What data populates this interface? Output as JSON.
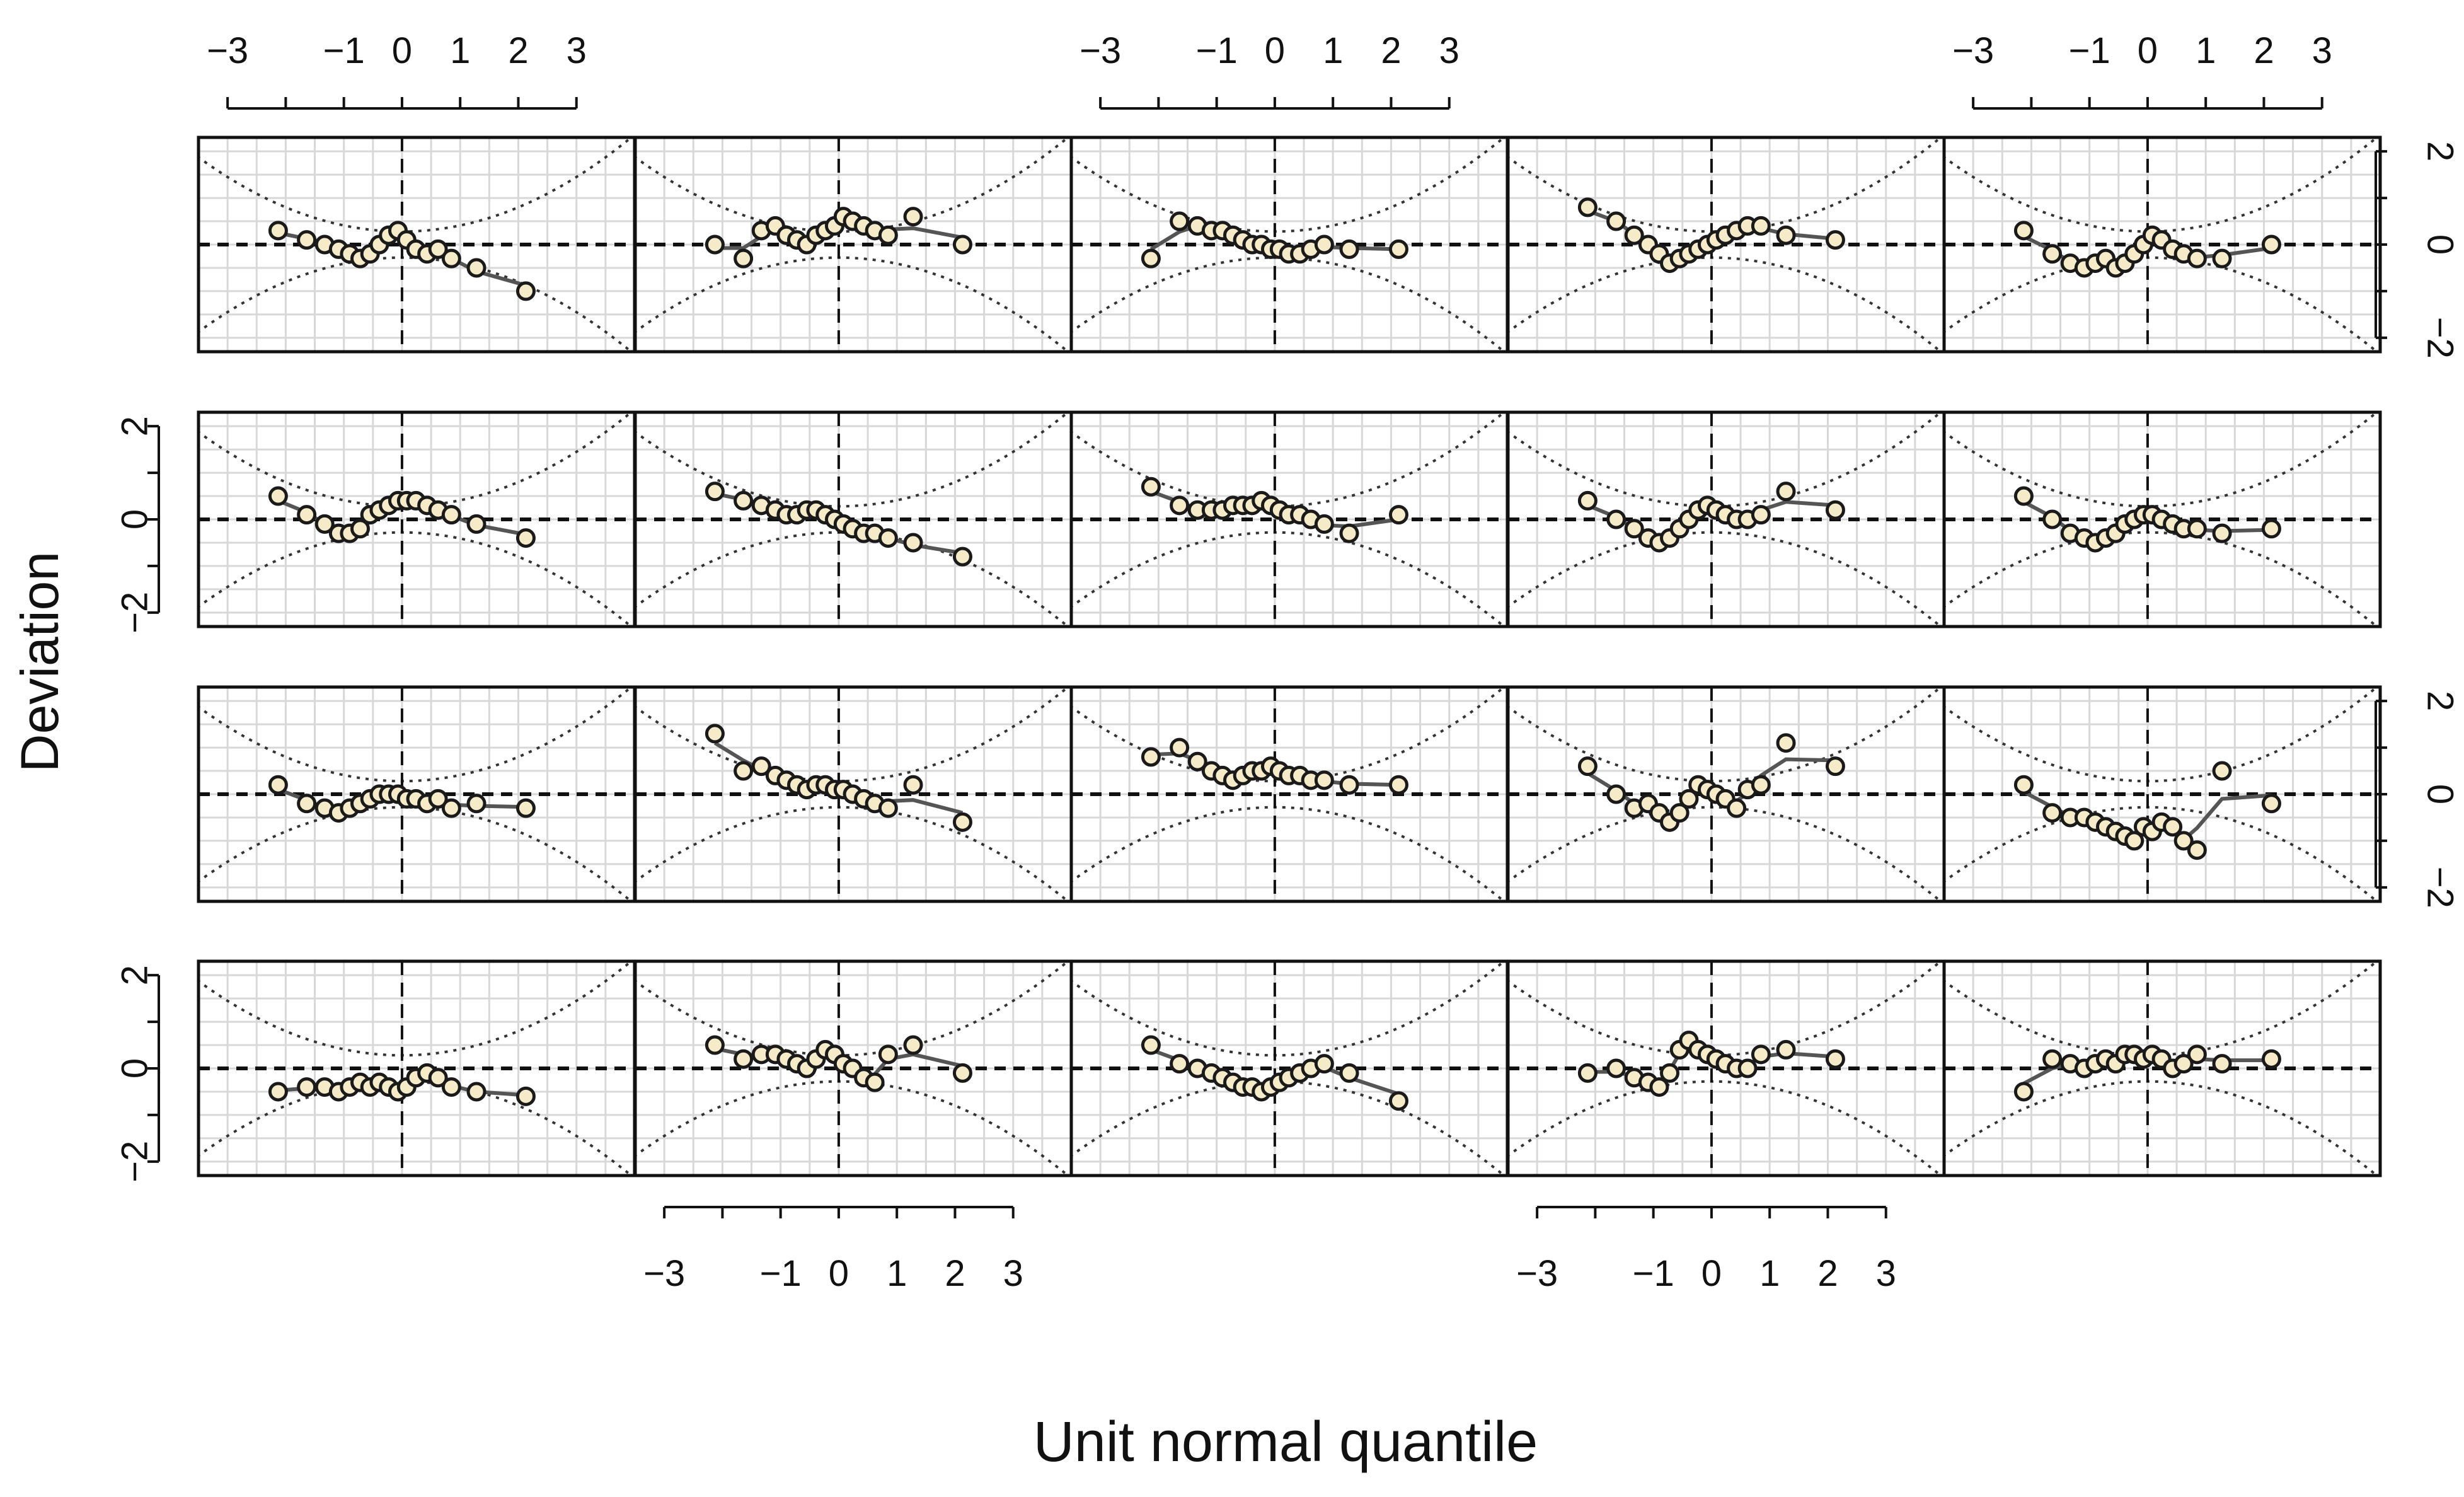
{
  "chart_data": {
    "type": "scatter",
    "plot_kind": "worm plot (detrended Q-Q) panels",
    "xlabel": "Unit normal quantile",
    "ylabel": "Deviation",
    "xlim": [
      -3.5,
      4.0
    ],
    "ylim": [
      -2.3,
      2.3
    ],
    "x_ticks": [
      -3,
      -2,
      -1,
      0,
      1,
      2,
      3
    ],
    "x_tick_labels": [
      "-3",
      "",
      "-1",
      "0",
      "1",
      "2",
      "3"
    ],
    "y_ticks": [
      -2,
      -1,
      0,
      1,
      2
    ],
    "y_tick_labels": [
      "-2",
      "",
      "0",
      "",
      "2"
    ],
    "grid": true,
    "rows": 4,
    "cols": 5,
    "point_color": "#f5ebc8",
    "point_edge_color": "#1a1a1a",
    "curve_color": "#555555",
    "panels": [
      {
        "y": [
          0.3,
          0.1,
          0.0,
          -0.1,
          -0.2,
          -0.3,
          -0.2,
          0.0,
          0.2,
          0.3,
          0.1,
          -0.1,
          -0.2,
          -0.1,
          -0.3,
          -0.5,
          -1.0
        ]
      },
      {
        "y": [
          0.0,
          -0.3,
          0.3,
          0.4,
          0.2,
          0.1,
          0.0,
          0.2,
          0.3,
          0.4,
          0.6,
          0.5,
          0.4,
          0.3,
          0.2,
          0.6,
          0.0
        ]
      },
      {
        "y": [
          -0.3,
          0.5,
          0.4,
          0.3,
          0.3,
          0.2,
          0.1,
          0.0,
          0.0,
          -0.1,
          -0.1,
          -0.2,
          -0.2,
          -0.1,
          0.0,
          -0.1,
          -0.1
        ]
      },
      {
        "y": [
          0.8,
          0.5,
          0.2,
          0.0,
          -0.2,
          -0.4,
          -0.3,
          -0.2,
          -0.1,
          0.0,
          0.1,
          0.2,
          0.3,
          0.4,
          0.4,
          0.2,
          0.1
        ]
      },
      {
        "y": [
          0.3,
          -0.2,
          -0.4,
          -0.5,
          -0.4,
          -0.3,
          -0.5,
          -0.4,
          -0.2,
          0.0,
          0.2,
          0.1,
          -0.1,
          -0.2,
          -0.3,
          -0.3,
          0.0
        ]
      },
      {
        "y": [
          0.5,
          0.1,
          -0.1,
          -0.3,
          -0.3,
          -0.2,
          0.1,
          0.2,
          0.3,
          0.4,
          0.4,
          0.4,
          0.3,
          0.2,
          0.1,
          -0.1,
          -0.4
        ]
      },
      {
        "y": [
          0.6,
          0.4,
          0.3,
          0.2,
          0.1,
          0.1,
          0.2,
          0.2,
          0.1,
          0.0,
          -0.1,
          -0.2,
          -0.3,
          -0.3,
          -0.4,
          -0.5,
          -0.8
        ]
      },
      {
        "y": [
          0.7,
          0.3,
          0.2,
          0.2,
          0.2,
          0.3,
          0.3,
          0.3,
          0.4,
          0.3,
          0.2,
          0.1,
          0.1,
          0.0,
          -0.1,
          -0.3,
          0.1
        ]
      },
      {
        "y": [
          0.4,
          0.0,
          -0.2,
          -0.4,
          -0.5,
          -0.4,
          -0.2,
          0.0,
          0.2,
          0.3,
          0.2,
          0.1,
          0.0,
          0.0,
          0.1,
          0.6,
          0.2
        ]
      },
      {
        "y": [
          0.5,
          0.0,
          -0.3,
          -0.4,
          -0.5,
          -0.4,
          -0.3,
          -0.1,
          0.0,
          0.1,
          0.1,
          0.0,
          -0.1,
          -0.2,
          -0.2,
          -0.3,
          -0.2
        ]
      },
      {
        "y": [
          0.2,
          -0.2,
          -0.3,
          -0.4,
          -0.3,
          -0.2,
          -0.1,
          0.0,
          0.0,
          0.0,
          -0.1,
          -0.1,
          -0.2,
          -0.1,
          -0.3,
          -0.2,
          -0.3
        ]
      },
      {
        "y": [
          1.3,
          0.5,
          0.6,
          0.4,
          0.3,
          0.2,
          0.1,
          0.2,
          0.2,
          0.1,
          0.1,
          0.0,
          -0.1,
          -0.2,
          -0.3,
          0.2,
          -0.6
        ]
      },
      {
        "y": [
          0.8,
          1.0,
          0.7,
          0.5,
          0.4,
          0.3,
          0.4,
          0.5,
          0.5,
          0.6,
          0.5,
          0.4,
          0.4,
          0.3,
          0.3,
          0.2,
          0.2
        ]
      },
      {
        "y": [
          0.6,
          0.0,
          -0.3,
          -0.2,
          -0.4,
          -0.6,
          -0.4,
          -0.1,
          0.2,
          0.1,
          0.0,
          -0.1,
          -0.3,
          0.1,
          0.2,
          1.1,
          0.6
        ]
      },
      {
        "y": [
          0.2,
          -0.4,
          -0.5,
          -0.5,
          -0.6,
          -0.7,
          -0.8,
          -0.9,
          -1.0,
          -0.7,
          -0.8,
          -0.6,
          -0.7,
          -1.0,
          -1.2,
          0.5,
          -0.2
        ]
      },
      {
        "y": [
          -0.5,
          -0.4,
          -0.4,
          -0.5,
          -0.4,
          -0.3,
          -0.4,
          -0.3,
          -0.4,
          -0.5,
          -0.4,
          -0.2,
          -0.1,
          -0.2,
          -0.4,
          -0.5,
          -0.6
        ]
      },
      {
        "y": [
          0.5,
          0.2,
          0.3,
          0.3,
          0.2,
          0.1,
          0.0,
          0.2,
          0.4,
          0.3,
          0.1,
          0.0,
          -0.2,
          -0.3,
          0.3,
          0.5,
          -0.1
        ]
      },
      {
        "y": [
          0.5,
          0.1,
          0.0,
          -0.1,
          -0.2,
          -0.3,
          -0.4,
          -0.4,
          -0.5,
          -0.4,
          -0.3,
          -0.2,
          -0.1,
          0.0,
          0.1,
          -0.1,
          -0.7
        ]
      },
      {
        "y": [
          -0.1,
          0.0,
          -0.2,
          -0.3,
          -0.4,
          -0.1,
          0.4,
          0.6,
          0.4,
          0.3,
          0.2,
          0.1,
          0.0,
          0.0,
          0.3,
          0.4,
          0.2
        ]
      },
      {
        "y": [
          -0.5,
          0.2,
          0.1,
          0.0,
          0.1,
          0.2,
          0.1,
          0.3,
          0.3,
          0.2,
          0.3,
          0.2,
          0.0,
          0.1,
          0.3,
          0.1,
          0.2
        ]
      }
    ],
    "x": [
      -2.13,
      -1.64,
      -1.33,
      -1.09,
      -0.9,
      -0.72,
      -0.55,
      -0.39,
      -0.23,
      -0.07,
      0.08,
      0.24,
      0.43,
      0.62,
      0.85,
      1.28,
      2.13
    ]
  }
}
